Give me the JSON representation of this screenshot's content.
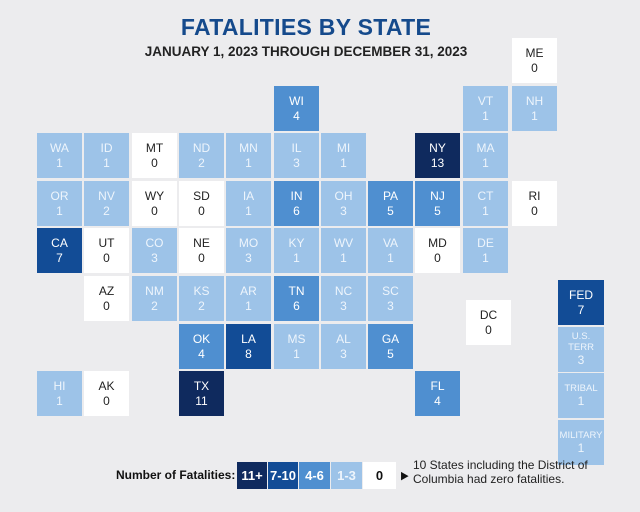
{
  "chart_data": {
    "type": "heatmap",
    "title": "FATALITIES BY STATE",
    "subtitle": "JANUARY 1, 2023 THROUGH DECEMBER 31, 2023",
    "states": [
      {
        "code": "ME",
        "value": 0
      },
      {
        "code": "WI",
        "value": 4
      },
      {
        "code": "VT",
        "value": 1
      },
      {
        "code": "NH",
        "value": 1
      },
      {
        "code": "WA",
        "value": 1
      },
      {
        "code": "ID",
        "value": 1
      },
      {
        "code": "MT",
        "value": 0
      },
      {
        "code": "ND",
        "value": 2
      },
      {
        "code": "MN",
        "value": 1
      },
      {
        "code": "IL",
        "value": 3
      },
      {
        "code": "MI",
        "value": 1
      },
      {
        "code": "NY",
        "value": 13
      },
      {
        "code": "MA",
        "value": 1
      },
      {
        "code": "OR",
        "value": 1
      },
      {
        "code": "NV",
        "value": 2
      },
      {
        "code": "WY",
        "value": 0
      },
      {
        "code": "SD",
        "value": 0
      },
      {
        "code": "IA",
        "value": 1
      },
      {
        "code": "IN",
        "value": 6
      },
      {
        "code": "OH",
        "value": 3
      },
      {
        "code": "PA",
        "value": 5
      },
      {
        "code": "NJ",
        "value": 5
      },
      {
        "code": "CT",
        "value": 1
      },
      {
        "code": "RI",
        "value": 0
      },
      {
        "code": "CA",
        "value": 7
      },
      {
        "code": "UT",
        "value": 0
      },
      {
        "code": "CO",
        "value": 3
      },
      {
        "code": "NE",
        "value": 0
      },
      {
        "code": "MO",
        "value": 3
      },
      {
        "code": "KY",
        "value": 1
      },
      {
        "code": "WV",
        "value": 1
      },
      {
        "code": "VA",
        "value": 1
      },
      {
        "code": "MD",
        "value": 0
      },
      {
        "code": "DE",
        "value": 1
      },
      {
        "code": "AZ",
        "value": 0
      },
      {
        "code": "NM",
        "value": 2
      },
      {
        "code": "KS",
        "value": 2
      },
      {
        "code": "AR",
        "value": 1
      },
      {
        "code": "TN",
        "value": 6
      },
      {
        "code": "NC",
        "value": 3
      },
      {
        "code": "SC",
        "value": 3
      },
      {
        "code": "DC",
        "value": 0
      },
      {
        "code": "OK",
        "value": 4
      },
      {
        "code": "LA",
        "value": 8
      },
      {
        "code": "MS",
        "value": 1
      },
      {
        "code": "AL",
        "value": 3
      },
      {
        "code": "GA",
        "value": 5
      },
      {
        "code": "HI",
        "value": 1
      },
      {
        "code": "AK",
        "value": 0
      },
      {
        "code": "TX",
        "value": 11
      },
      {
        "code": "FL",
        "value": 4
      }
    ],
    "other": [
      {
        "code": "FED",
        "value": 7
      },
      {
        "code": "U.S. TERR",
        "value": 3
      },
      {
        "code": "TRIBAL",
        "value": 1
      },
      {
        "code": "MILITARY",
        "value": 1
      }
    ],
    "legend": {
      "label": "Number of Fatalities:",
      "bins": [
        {
          "label": "11+",
          "min": 11,
          "max": null,
          "color": "#0f2a5e"
        },
        {
          "label": "7-10",
          "min": 7,
          "max": 10,
          "color": "#124c96"
        },
        {
          "label": "4-6",
          "min": 4,
          "max": 6,
          "color": "#4f8fd0"
        },
        {
          "label": "1-3",
          "min": 1,
          "max": 3,
          "color": "#9dc3e8"
        },
        {
          "label": "0",
          "min": 0,
          "max": 0,
          "color": "#ffffff"
        }
      ],
      "note": "10 States including the District of Columbia had zero fatalities."
    }
  }
}
